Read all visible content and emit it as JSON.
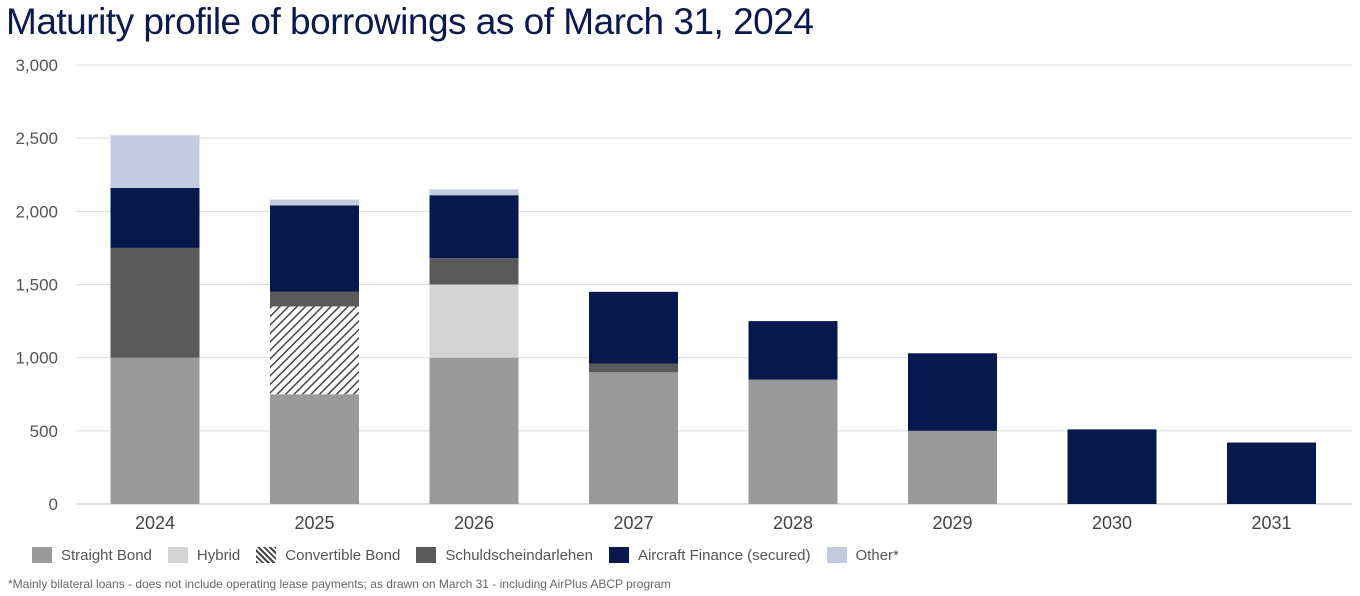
{
  "title": "Maturity profile of borrowings as of March 31, 2024",
  "footnote": "*Mainly bilateral loans - does not include operating lease payments; as drawn on March 31 - including AirPlus ABCP program",
  "chart_data": {
    "type": "bar",
    "stacked": true,
    "categories": [
      "2024",
      "2025",
      "2026",
      "2027",
      "2028",
      "2029",
      "2030",
      "2031"
    ],
    "ylim": [
      0,
      3000
    ],
    "yticks": [
      0,
      500,
      1000,
      1500,
      2000,
      2500,
      3000
    ],
    "ytick_labels": [
      "0",
      "500",
      "1,000",
      "1,500",
      "2,000",
      "2,500",
      "3,000"
    ],
    "grid": true,
    "legend_position": "bottom",
    "series": [
      {
        "name": "Straight Bond",
        "color": "#9a9a9a",
        "pattern": "none",
        "values": [
          1000,
          750,
          1000,
          900,
          850,
          500,
          0,
          0
        ]
      },
      {
        "name": "Hybrid",
        "color": "#d4d4d4",
        "pattern": "none",
        "values": [
          0,
          0,
          500,
          0,
          0,
          0,
          0,
          0
        ]
      },
      {
        "name": "Convertible Bond",
        "color": "#444444",
        "pattern": "diagonal-hatch",
        "values": [
          0,
          600,
          0,
          0,
          0,
          0,
          0,
          0
        ]
      },
      {
        "name": "Schuldscheindarlehen",
        "color": "#5a5a5a",
        "pattern": "none",
        "values": [
          750,
          100,
          180,
          60,
          0,
          0,
          0,
          0
        ]
      },
      {
        "name": "Aircraft Finance (secured)",
        "color": "#08174d",
        "pattern": "none",
        "values": [
          410,
          590,
          430,
          490,
          400,
          530,
          510,
          420
        ]
      },
      {
        "name": "Other*",
        "color": "#c3cbdf",
        "pattern": "none",
        "values": [
          360,
          40,
          40,
          0,
          0,
          0,
          0,
          0
        ]
      }
    ]
  }
}
